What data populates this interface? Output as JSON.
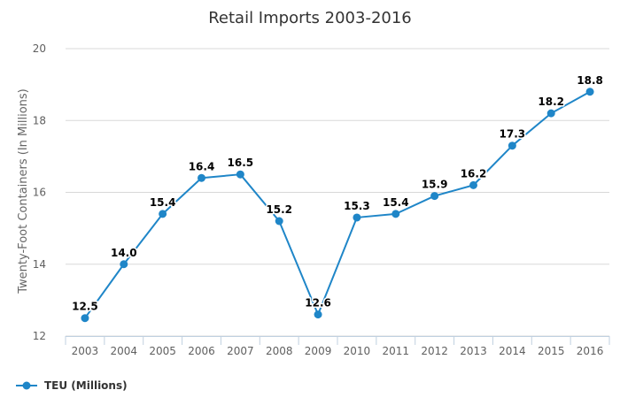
{
  "chart_data": {
    "type": "line",
    "title": "Retail Imports 2003-2016",
    "xlabel": "",
    "ylabel": "Twenty-Foot Containers (In Millions)",
    "categories": [
      "2003",
      "2004",
      "2005",
      "2006",
      "2007",
      "2008",
      "2009",
      "2010",
      "2011",
      "2012",
      "2013",
      "2014",
      "2015",
      "2016"
    ],
    "series": [
      {
        "name": "TEU (Millions)",
        "values": [
          12.5,
          14.0,
          15.4,
          16.4,
          16.5,
          15.2,
          12.6,
          15.3,
          15.4,
          15.9,
          16.2,
          17.3,
          18.2,
          18.8
        ],
        "labels": [
          "12.5",
          "14.0",
          "15.4",
          "16.4",
          "16.5",
          "15.2",
          "12.6",
          "15.3",
          "15.4",
          "15.9",
          "16.2",
          "17.3",
          "18.2",
          "18.8"
        ],
        "color": "#1f86c8"
      }
    ],
    "ylim": [
      12,
      20
    ],
    "yticks": [
      "12",
      "14",
      "16",
      "18",
      "20"
    ],
    "grid": true,
    "legend": "bottom-left"
  }
}
